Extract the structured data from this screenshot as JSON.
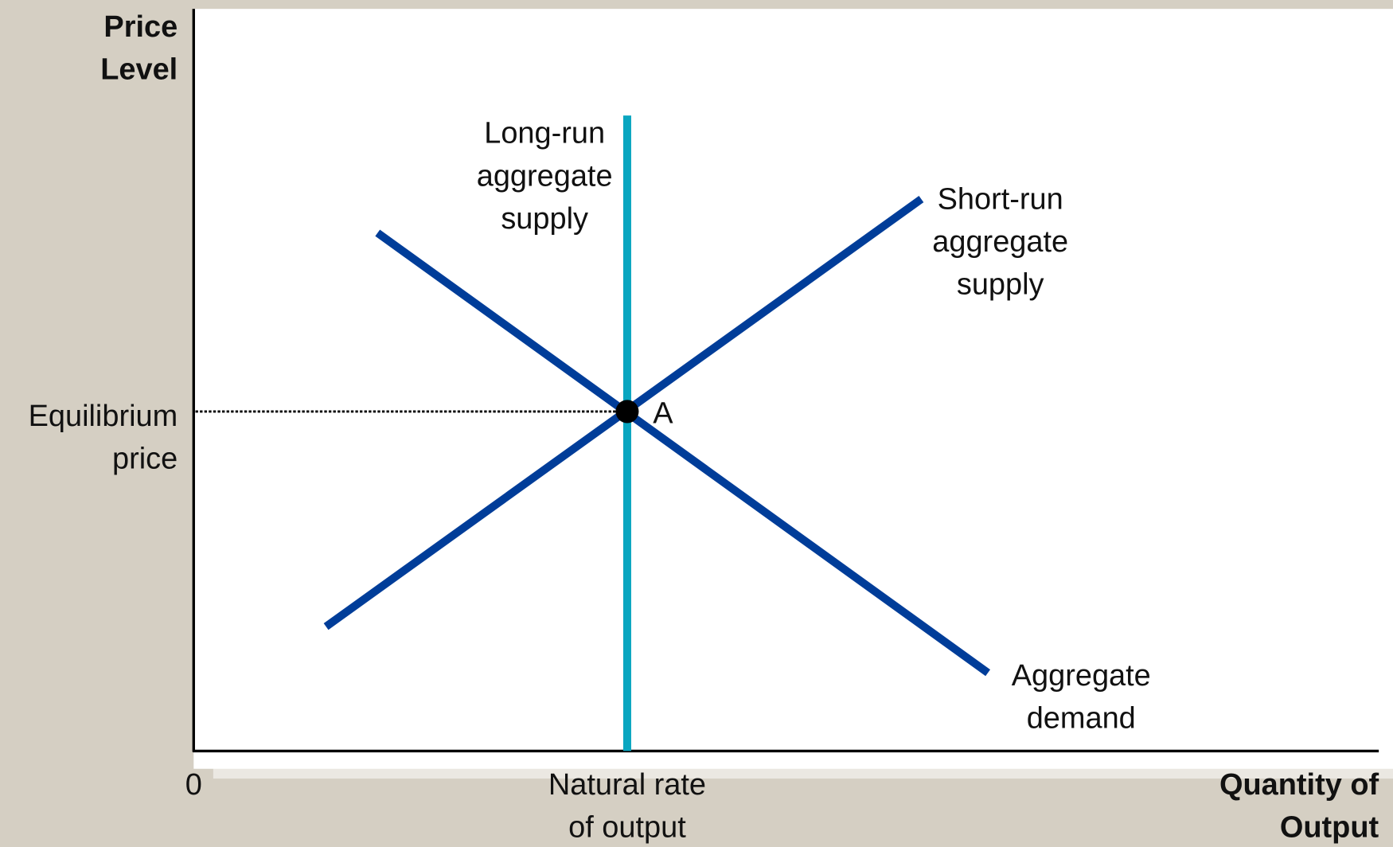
{
  "y_axis": {
    "label": [
      "Price",
      "Level"
    ],
    "level_label": [
      "Equilibrium",
      "price"
    ]
  },
  "x_axis": {
    "label": [
      "Quantity of",
      "Output"
    ],
    "origin": "0",
    "level_label": [
      "Natural rate",
      "of output"
    ]
  },
  "curves": [
    {
      "label": [
        "Long-run",
        "aggregate",
        "supply"
      ]
    },
    {
      "label": [
        "Short-run",
        "aggregate",
        "supply"
      ]
    },
    {
      "label": [
        "Aggregate",
        "demand"
      ]
    }
  ],
  "point": {
    "label": "A"
  }
}
